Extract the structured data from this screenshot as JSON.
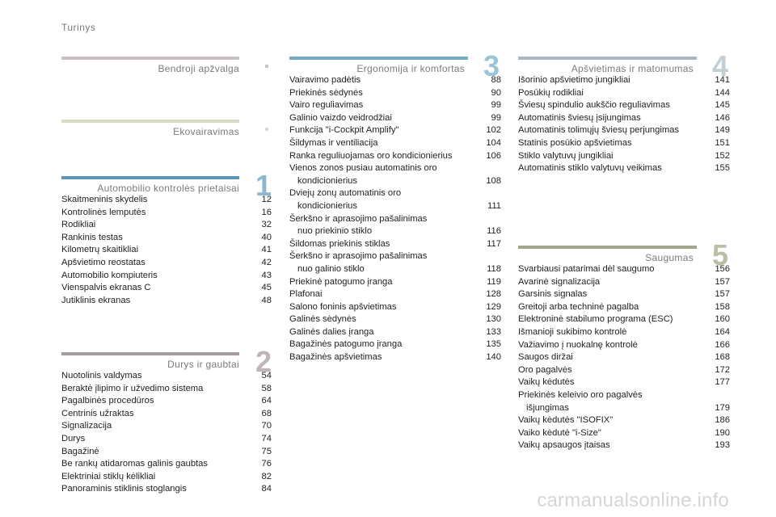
{
  "page_label": "Turinys",
  "watermark": "carmanualsonline.info",
  "sections": {
    "general": {
      "title": "Bendroji apžvalga",
      "bar_color": "#c8bfc4",
      "dot_color": "#c8bfc4"
    },
    "eco": {
      "title": "Ekovairavimas",
      "bar_color": "#d7dcc4",
      "dot_color": "#d7dcc4"
    },
    "s1": {
      "title": "Automobilio kontrolės prietaisai",
      "number": "1",
      "bar_color": "#5f95b7",
      "num_color": "#8fb6d0",
      "entries": [
        {
          "text": "Skaitmeninis skydelis",
          "page": "12"
        },
        {
          "text": "Kontrolinės lemputės",
          "page": "16"
        },
        {
          "text": "Rodikliai",
          "page": "32"
        },
        {
          "text": "Rankinis testas",
          "page": "40"
        },
        {
          "text": "Kilometrų skaitikliai",
          "page": "41"
        },
        {
          "text": "Apšvietimo reostatas",
          "page": "42"
        },
        {
          "text": "Automobilio kompiuteris",
          "page": "43"
        },
        {
          "text": "Vienspalvis ekranas C",
          "page": "45"
        },
        {
          "text": "Jutiklinis ekranas",
          "page": "48"
        }
      ]
    },
    "s2": {
      "title": "Durys ir gaubtai",
      "number": "2",
      "bar_color": "#a59b9f",
      "num_color": "#bfb6ba",
      "entries": [
        {
          "text": "Nuotolinis valdymas",
          "page": "54"
        },
        {
          "text": "Beraktė įlipimo ir užvedimo sistema",
          "page": "58"
        },
        {
          "text": "Pagalbinės procedūros",
          "page": "64"
        },
        {
          "text": "Centrinis užraktas",
          "page": "68"
        },
        {
          "text": "Signalizacija",
          "page": "70"
        },
        {
          "text": "Durys",
          "page": "74"
        },
        {
          "text": "Bagažinė",
          "page": "75"
        },
        {
          "text": "Be rankų atidaromas galinis gaubtas",
          "page": "76"
        },
        {
          "text": "Elektriniai stiklų kėlikliai",
          "page": "82"
        },
        {
          "text": "Panoraminis stiklinis stoglangis",
          "page": "84"
        }
      ]
    },
    "s3": {
      "title": "Ergonomija ir komfortas",
      "number": "3",
      "bar_color": "#77aac6",
      "num_color": "#9cc3d8",
      "entries": [
        {
          "text": "Vairavimo padėtis",
          "page": "88"
        },
        {
          "text": "Priekinės sėdynės",
          "page": "90"
        },
        {
          "text": "Vairo reguliavimas",
          "page": "99"
        },
        {
          "text": "Galinio vaizdo veidrodžiai",
          "page": "99"
        },
        {
          "text": "Funkcija \"i-Cockpit Amplify\"",
          "page": "102"
        },
        {
          "text": "Šildymas ir ventiliacija",
          "page": "104"
        },
        {
          "text": "Ranka reguliuojamas oro kondicionierius",
          "page": "106"
        },
        {
          "text": "Vienos zonos pusiau automatinis oro",
          "line2": "kondicionierius",
          "page": "108"
        },
        {
          "text": "Dviejų zonų automatinis oro",
          "line2": "kondicionierius",
          "page": "111"
        },
        {
          "text": "Šerkšno ir aprasojimo pašalinimas",
          "line2": "nuo priekinio stiklo",
          "page": "116"
        },
        {
          "text": "Šildomas priekinis stiklas",
          "page": "117"
        },
        {
          "text": "Šerkšno ir aprasojimo pašalinimas",
          "line2": "nuo galinio stiklo",
          "page": "118"
        },
        {
          "text": "Priekinė patogumo įranga",
          "page": "119"
        },
        {
          "text": "Plafonai",
          "page": "128"
        },
        {
          "text": "Salono foninis apšvietimas",
          "page": "129"
        },
        {
          "text": "Galinės sėdynės",
          "page": "130"
        },
        {
          "text": "Galinės dalies įranga",
          "page": "133"
        },
        {
          "text": "Bagažinės patogumo įranga",
          "page": "135"
        },
        {
          "text": "Bagažinės apšvietimas",
          "page": "140"
        }
      ]
    },
    "s4": {
      "title": "Apšvietimas ir matomumas",
      "number": "4",
      "bar_color": "#a9b9c0",
      "num_color": "#c2cfd5",
      "entries": [
        {
          "text": "Išorinio apšvietimo jungikliai",
          "page": "141"
        },
        {
          "text": "Posūkių rodikliai",
          "page": "144"
        },
        {
          "text": "Šviesų spindulio aukščio reguliavimas",
          "page": "145"
        },
        {
          "text": "Automatinis šviesų įsijungimas",
          "page": "146"
        },
        {
          "text": "Automatinis tolimųjų šviesų perjungimas",
          "page": "149"
        },
        {
          "text": "Statinis posūkio apšvietimas",
          "page": "151"
        },
        {
          "text": "Stiklo valytuvų jungikliai",
          "page": "152"
        },
        {
          "text": "Automatinis stiklo valytuvų veikimas",
          "page": "155"
        }
      ]
    },
    "s5": {
      "title": "Saugumas",
      "number": "5",
      "bar_color": "#a3a58a",
      "num_color": "#bcbea6",
      "entries": [
        {
          "text": "Svarbiausi patarimai dėl saugumo",
          "page": "156"
        },
        {
          "text": "Avarinė signalizacija",
          "page": "157"
        },
        {
          "text": "Garsinis signalas",
          "page": "157"
        },
        {
          "text": "Greitoji arba techninė pagalba",
          "page": "158"
        },
        {
          "text": "Elektroninė stabilumo programa (ESC)",
          "page": "160"
        },
        {
          "text": "Išmanioji sukibimo kontrolė",
          "page": "164"
        },
        {
          "text": "Važiavimo į nuokalnę kontrolė",
          "page": "166"
        },
        {
          "text": "Saugos diržai",
          "page": "168"
        },
        {
          "text": "Oro pagalvės",
          "page": "172"
        },
        {
          "text": "Vaikų kėdutės",
          "page": "177"
        },
        {
          "text": "Priekinės keleivio oro pagalvės",
          "line2": "išjungimas",
          "page": "179"
        },
        {
          "text": "Vaikų kėdutės \"ISOFIX\"",
          "page": "186"
        },
        {
          "text": "Vaiko kėdutė \"i-Size\"",
          "page": "190"
        },
        {
          "text": "Vaikų apsaugos įtaisas",
          "page": "193"
        }
      ]
    }
  }
}
